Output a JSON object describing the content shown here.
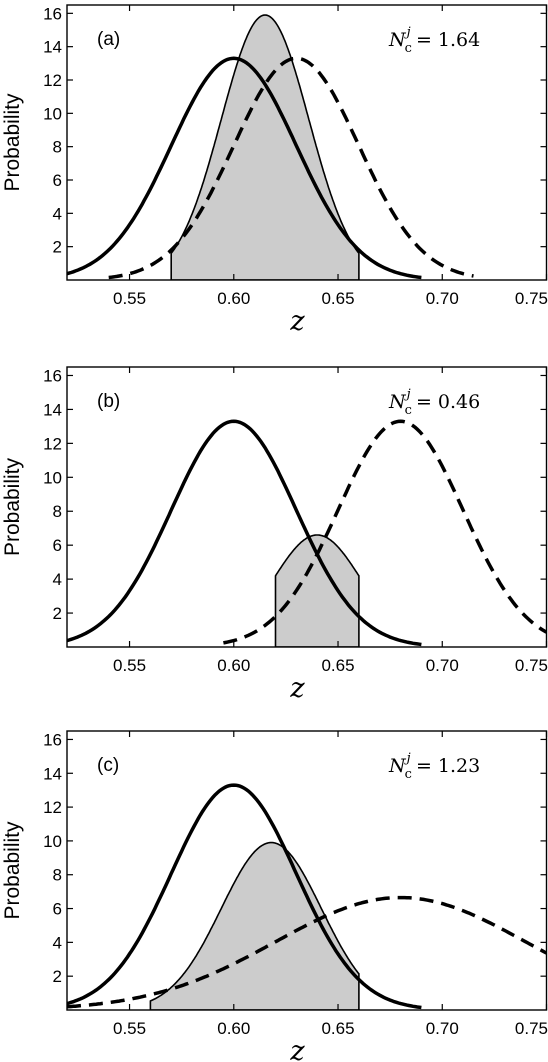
{
  "chart_data": [
    {
      "type": "line",
      "panel_label": "(a)",
      "annotation": {
        "symbol": "N",
        "sub": "c",
        "sup": "j",
        "value": "= 1.64"
      },
      "xlabel": "z",
      "ylabel": "Probability",
      "xlim": [
        0.52,
        0.75
      ],
      "ylim": [
        0,
        16.5
      ],
      "xticks": [
        "0.55",
        "0.60",
        "0.65",
        "0.70",
        "0.75"
      ],
      "yticks": [
        "2",
        "4",
        "6",
        "8",
        "10",
        "12",
        "14",
        "16"
      ],
      "series": [
        {
          "style": "solid",
          "mean": 0.6,
          "sd": 0.03,
          "peak": 13.3,
          "range": [
            0.52,
            0.69
          ]
        },
        {
          "style": "dashed",
          "mean": 0.63,
          "sd": 0.03,
          "peak": 13.3,
          "range": [
            0.54,
            0.715
          ]
        },
        {
          "style": "filled",
          "mean": 0.615,
          "sd": 0.021,
          "peak": 15.9,
          "range": [
            0.57,
            0.66
          ]
        }
      ]
    },
    {
      "type": "line",
      "panel_label": "(b)",
      "annotation": {
        "symbol": "N",
        "sub": "c",
        "sup": "j",
        "value": "= 0.46"
      },
      "xlabel": "z",
      "ylabel": "Probability",
      "xlim": [
        0.52,
        0.75
      ],
      "ylim": [
        0,
        16.5
      ],
      "xticks": [
        "0.55",
        "0.60",
        "0.65",
        "0.70",
        "0.75"
      ],
      "yticks": [
        "2",
        "4",
        "6",
        "8",
        "10",
        "12",
        "14",
        "16"
      ],
      "series": [
        {
          "style": "solid",
          "mean": 0.6,
          "sd": 0.03,
          "peak": 13.3,
          "range": [
            0.52,
            0.69
          ]
        },
        {
          "style": "dashed",
          "mean": 0.68,
          "sd": 0.03,
          "peak": 13.3,
          "range": [
            0.595,
            0.75
          ]
        },
        {
          "style": "filled",
          "mean": 0.64,
          "sd": 0.021,
          "peak": 6.6,
          "range": [
            0.62,
            0.66
          ]
        }
      ]
    },
    {
      "type": "line",
      "panel_label": "(c)",
      "annotation": {
        "symbol": "N",
        "sub": "c",
        "sup": "j",
        "value": "= 1.23"
      },
      "xlabel": "z",
      "ylabel": "Probability",
      "xlim": [
        0.52,
        0.75
      ],
      "ylim": [
        0,
        16.5
      ],
      "xticks": [
        "0.55",
        "0.60",
        "0.65",
        "0.70",
        "0.75"
      ],
      "yticks": [
        "2",
        "4",
        "6",
        "8",
        "10",
        "12",
        "14",
        "16"
      ],
      "series": [
        {
          "style": "solid",
          "mean": 0.6,
          "sd": 0.03,
          "peak": 13.3,
          "range": [
            0.52,
            0.69
          ]
        },
        {
          "style": "dashed",
          "mean": 0.68,
          "sd": 0.06,
          "peak": 6.65,
          "range": [
            0.52,
            0.75
          ]
        },
        {
          "style": "filled",
          "mean": 0.618,
          "sd": 0.024,
          "peak": 9.9,
          "range": [
            0.56,
            0.66
          ]
        }
      ]
    }
  ]
}
